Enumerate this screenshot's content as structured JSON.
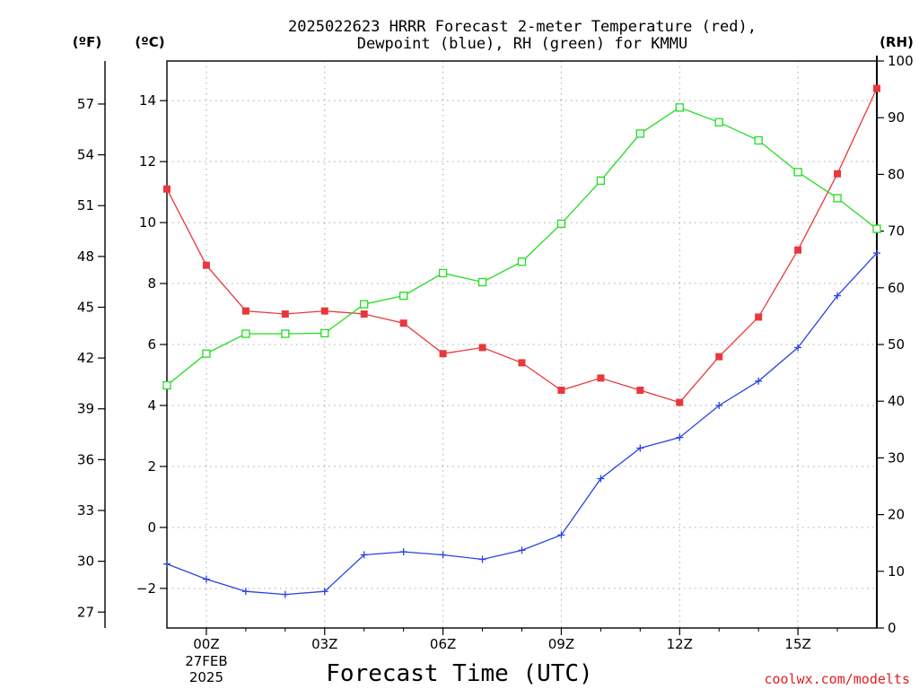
{
  "colors": {
    "temperature": "#e8383c",
    "dewpoint": "#2a44e0",
    "rh": "#22dd22",
    "grid": "#a8a8a8",
    "credit": "#e02020"
  },
  "chart_data": {
    "type": "line",
    "title": [
      "2025022623 HRRR Forecast 2-meter Temperature (red),",
      "Dewpoint (blue), RH (green) for KMMU"
    ],
    "xlabel": "Forecast Time (UTC)",
    "left_unit_f": "(ºF)",
    "left_unit_c": "(ºC)",
    "right_unit": "(RH)",
    "x_hours": [
      -1,
      0,
      1,
      2,
      3,
      4,
      5,
      6,
      7,
      8,
      9,
      10,
      11,
      12,
      13,
      14,
      15,
      16,
      17
    ],
    "xlim": [
      -1,
      17
    ],
    "x_ticks": [
      {
        "hour": 0,
        "label": "00Z",
        "sub": [
          "27FEB",
          "2025"
        ]
      },
      {
        "hour": 3,
        "label": "03Z"
      },
      {
        "hour": 6,
        "label": "06Z"
      },
      {
        "hour": 9,
        "label": "09Z"
      },
      {
        "hour": 12,
        "label": "12Z"
      },
      {
        "hour": 15,
        "label": "15Z"
      }
    ],
    "celsius_axis": {
      "ylim": [
        -3.3,
        15.3
      ],
      "ticks": [
        -2,
        0,
        2,
        4,
        6,
        8,
        10,
        12,
        14
      ]
    },
    "fahrenheit_axis": {
      "ticks": [
        27,
        30,
        33,
        36,
        39,
        42,
        45,
        48,
        51,
        54,
        57
      ]
    },
    "rh_axis": {
      "ylim": [
        0,
        100
      ],
      "ticks": [
        0,
        10,
        20,
        30,
        40,
        50,
        60,
        70,
        80,
        90,
        100
      ]
    },
    "series": [
      {
        "key": "temperature",
        "axis": "celsius",
        "marker": "filled-square",
        "values": [
          11.1,
          8.6,
          7.1,
          7.0,
          7.1,
          7.0,
          6.7,
          5.7,
          5.9,
          5.4,
          4.5,
          4.9,
          4.5,
          4.1,
          5.6,
          6.9,
          9.1,
          11.6,
          14.4
        ]
      },
      {
        "key": "dewpoint",
        "axis": "celsius",
        "marker": "plus",
        "values": [
          -1.2,
          -1.7,
          -2.1,
          -2.2,
          -2.1,
          -0.9,
          -0.8,
          -0.9,
          -1.05,
          -0.75,
          -0.25,
          1.6,
          2.6,
          2.95,
          4.0,
          4.8,
          5.9,
          7.6,
          9.0
        ]
      },
      {
        "key": "rh",
        "axis": "rh",
        "marker": "open-square",
        "values": [
          42.8,
          48.4,
          51.9,
          51.9,
          52.0,
          57.1,
          58.6,
          62.6,
          61.0,
          64.6,
          71.3,
          78.9,
          87.2,
          91.8,
          89.2,
          86.0,
          80.4,
          75.8,
          70.4
        ]
      }
    ]
  },
  "credit": "coolwx.com/modelts"
}
